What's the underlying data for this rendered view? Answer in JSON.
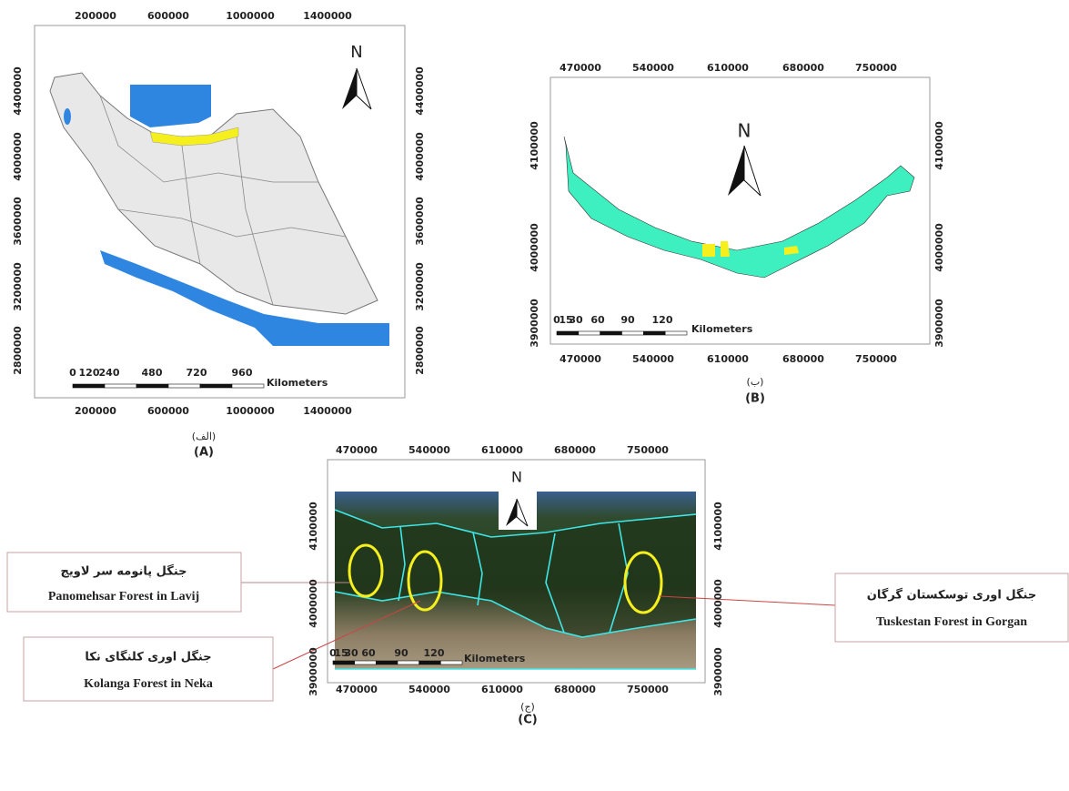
{
  "panel_a": {
    "x_ticks": [
      "200000",
      "600000",
      "1000000",
      "1400000"
    ],
    "y_ticks": [
      "4400000",
      "4000000",
      "3600000",
      "3200000",
      "2800000"
    ],
    "north": "N",
    "scale_labels": [
      "0",
      "120",
      "240",
      "480",
      "720",
      "960"
    ],
    "scale_unit": "Kilometers",
    "caption_fa": "(الف)",
    "caption_en": "(A)"
  },
  "panel_b": {
    "x_ticks": [
      "470000",
      "540000",
      "610000",
      "680000",
      "750000"
    ],
    "y_ticks": [
      "4100000",
      "4000000",
      "3900000"
    ],
    "north": "N",
    "scale_labels": [
      "0",
      "15",
      "30",
      "60",
      "90",
      "120"
    ],
    "scale_unit": "Kilometers",
    "caption_fa": "(ب)",
    "caption_en": "(B)"
  },
  "panel_c": {
    "x_ticks": [
      "470000",
      "540000",
      "610000",
      "680000",
      "750000"
    ],
    "y_ticks": [
      "4100000",
      "4000000",
      "3900000"
    ],
    "north": "N",
    "scale_labels": [
      "0",
      "15",
      "30",
      "60",
      "90",
      "120"
    ],
    "scale_unit": "Kilometers",
    "caption_fa": "(ج)",
    "caption_en": "(C)"
  },
  "callouts": [
    {
      "fa": "جنگل پانومه سر لاویج",
      "en": "Panomehsar Forest in Lavij"
    },
    {
      "fa": "جنگل اوری کلنگای نکا",
      "en": "Kolanga Forest in Neka"
    },
    {
      "fa": "جنگل اوری توسکستان گرگان",
      "en": "Tuskestan Forest in Gorgan"
    }
  ]
}
